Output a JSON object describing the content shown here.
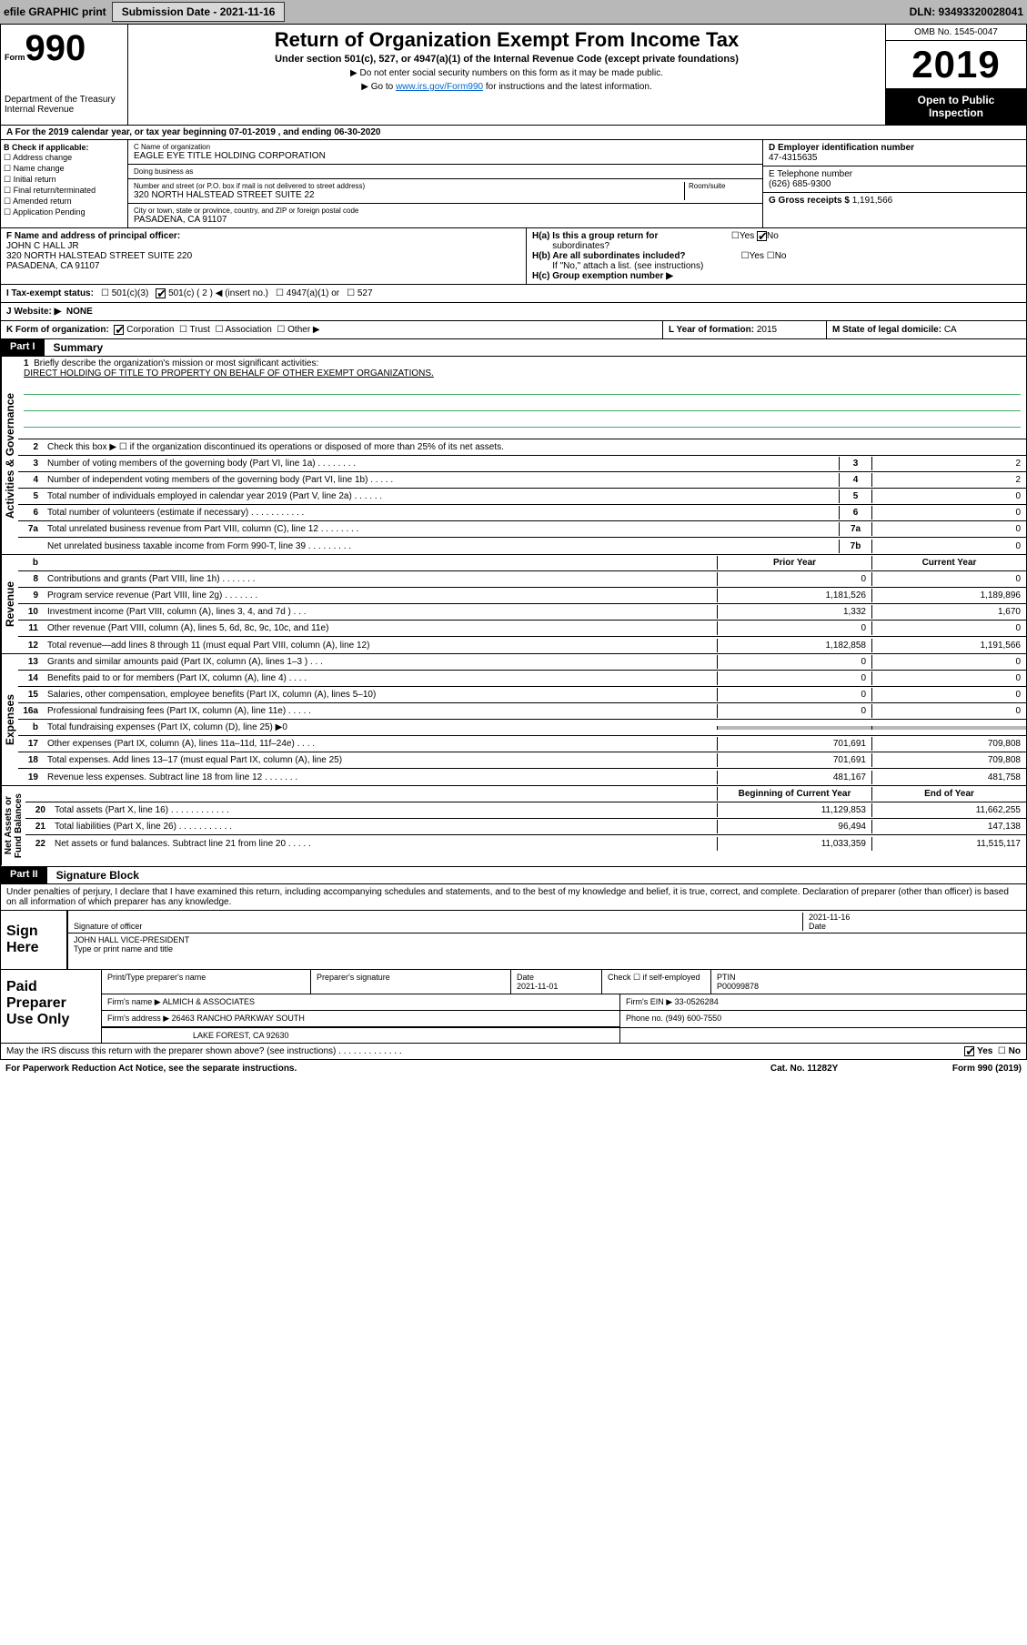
{
  "top_bar": {
    "efile": "efile GRAPHIC print",
    "submission_btn": "Submission Date - 2021-11-16",
    "dln": "DLN: 93493320028041"
  },
  "header": {
    "form_label": "Form",
    "form_num": "990",
    "dept": "Department of the Treasury\nInternal Revenue",
    "title": "Return of Organization Exempt From Income Tax",
    "subtitle": "Under section 501(c), 527, or 4947(a)(1) of the Internal Revenue Code (except private foundations)",
    "note1": "▶ Do not enter social security numbers on this form as it may be made public.",
    "note2_prefix": "▶ Go to ",
    "note2_link": "www.irs.gov/Form990",
    "note2_suffix": " for instructions and the latest information.",
    "omb": "OMB No. 1545-0047",
    "year": "2019",
    "inspection": "Open to Public Inspection"
  },
  "line_a": "A For the 2019 calendar year, or tax year beginning 07-01-2019    , and ending 06-30-2020",
  "section_b": {
    "check_label": "B Check if applicable:",
    "checks": [
      "Address change",
      "Name change",
      "Initial return",
      "Final return/terminated",
      "Amended return",
      "Application Pending"
    ],
    "org_name_lbl": "C Name of organization",
    "org_name": "EAGLE EYE TITLE HOLDING CORPORATION",
    "dba_lbl": "Doing business as",
    "dba": "",
    "addr_lbl": "Number and street (or P.O. box if mail is not delivered to street address)",
    "addr": "320 NORTH HALSTEAD STREET SUITE 22",
    "room_lbl": "Room/suite",
    "city_lbl": "City or town, state or province, country, and ZIP or foreign postal code",
    "city": "PASADENA, CA  91107",
    "ein_lbl": "D Employer identification number",
    "ein": "47-4315635",
    "tel_lbl": "E Telephone number",
    "tel": "(626) 685-9300",
    "gross_lbl": "G Gross receipts $",
    "gross": "1,191,566"
  },
  "principal": {
    "lbl": "F  Name and address of principal officer:",
    "name": "JOHN C HALL JR",
    "addr": "320 NORTH HALSTEAD STREET SUITE 220\nPASADENA, CA  91107",
    "ha_lbl": "H(a)  Is this a group return for",
    "ha_sub": "subordinates?",
    "ha_ans": "No",
    "hb_lbl": "H(b)  Are all subordinates included?",
    "hb_note": "If \"No,\" attach a list. (see instructions)",
    "hc_lbl": "H(c)  Group exemption number ▶"
  },
  "tax_status": {
    "lbl": "I  Tax-exempt status:",
    "opts": [
      "501(c)(3)",
      "501(c) ( 2 ) ◀ (insert no.)",
      "4947(a)(1) or",
      "527"
    ]
  },
  "website": {
    "lbl": "J  Website: ▶",
    "val": "NONE"
  },
  "kform": {
    "lbl": "K Form of organization:",
    "opts": [
      "Corporation",
      "Trust",
      "Association",
      "Other ▶"
    ],
    "l_lbl": "L Year of formation:",
    "l_val": "2015",
    "m_lbl": "M State of legal domicile:",
    "m_val": "CA"
  },
  "part1": {
    "tab": "Part I",
    "title": "Summary"
  },
  "summary": {
    "q1": "Briefly describe the organization's mission or most significant activities:",
    "mission": "DIRECT HOLDING OF TITLE TO PROPERTY ON BEHALF OF OTHER EXEMPT ORGANIZATIONS.",
    "q2": "Check this box ▶ ☐  if the organization discontinued its operations or disposed of more than 25% of its net assets.",
    "rows_simple": [
      {
        "n": "3",
        "d": "Number of voting members of the governing body (Part VI, line 1a)  .     .     .     .     .     .     .     .",
        "b": "3",
        "v": "2"
      },
      {
        "n": "4",
        "d": "Number of independent voting members of the governing body (Part VI, line 1b)   .     .     .     .     .",
        "b": "4",
        "v": "2"
      },
      {
        "n": "5",
        "d": "Total number of individuals employed in calendar year 2019 (Part V, line 2a)   .     .     .     .     .     .",
        "b": "5",
        "v": "0"
      },
      {
        "n": "6",
        "d": "Total number of volunteers (estimate if necessary)   .     .     .     .     .     .     .     .     .     .     .",
        "b": "6",
        "v": "0"
      },
      {
        "n": "7a",
        "d": "Total unrelated business revenue from Part VIII, column (C), line 12   .     .     .     .     .     .     .     .",
        "b": "7a",
        "v": "0"
      },
      {
        "n": "",
        "d": "Net unrelated business taxable income from Form 990-T, line 39   .     .     .     .     .     .     .     .     .",
        "b": "7b",
        "v": "0"
      }
    ],
    "two_col_hdr": {
      "prior": "Prior Year",
      "current": "Current Year"
    },
    "revenue_rows": [
      {
        "n": "8",
        "d": "Contributions and grants (Part VIII, line 1h)   .     .     .     .     .     .     .",
        "p": "0",
        "c": "0"
      },
      {
        "n": "9",
        "d": "Program service revenue (Part VIII, line 2g)    .     .     .     .     .     .     .",
        "p": "1,181,526",
        "c": "1,189,896"
      },
      {
        "n": "10",
        "d": "Investment income (Part VIII, column (A), lines 3, 4, and 7d )    .     .     .",
        "p": "1,332",
        "c": "1,670"
      },
      {
        "n": "11",
        "d": "Other revenue (Part VIII, column (A), lines 5, 6d, 8c, 9c, 10c, and 11e)",
        "p": "0",
        "c": "0"
      },
      {
        "n": "12",
        "d": "Total revenue—add lines 8 through 11 (must equal Part VIII, column (A), line 12)",
        "p": "1,182,858",
        "c": "1,191,566"
      }
    ],
    "expense_rows": [
      {
        "n": "13",
        "d": "Grants and similar amounts paid (Part IX, column (A), lines 1–3 )   .     .     .",
        "p": "0",
        "c": "0"
      },
      {
        "n": "14",
        "d": "Benefits paid to or for members (Part IX, column (A), line 4)    .     .     .     .",
        "p": "0",
        "c": "0"
      },
      {
        "n": "15",
        "d": "Salaries, other compensation, employee benefits (Part IX, column (A), lines 5–10)",
        "p": "0",
        "c": "0"
      },
      {
        "n": "16a",
        "d": "Professional fundraising fees (Part IX, column (A), line 11e)   .     .     .     .     .",
        "p": "0",
        "c": "0"
      },
      {
        "n": "b",
        "d": "Total fundraising expenses (Part IX, column (D), line 25) ▶0",
        "p": "",
        "c": "",
        "shaded": true
      },
      {
        "n": "17",
        "d": "Other expenses (Part IX, column (A), lines 11a–11d, 11f–24e)   .     .     .     .",
        "p": "701,691",
        "c": "709,808"
      },
      {
        "n": "18",
        "d": "Total expenses. Add lines 13–17 (must equal Part IX, column (A), line 25)",
        "p": "701,691",
        "c": "709,808"
      },
      {
        "n": "19",
        "d": "Revenue less expenses. Subtract line 18 from line 12   .     .     .     .     .     .     .",
        "p": "481,167",
        "c": "481,758"
      }
    ],
    "net_hdr": {
      "prior": "Beginning of Current Year",
      "current": "End of Year"
    },
    "net_rows": [
      {
        "n": "20",
        "d": "Total assets (Part X, line 16)    .     .     .     .     .     .     .     .     .     .     .     .",
        "p": "11,129,853",
        "c": "11,662,255"
      },
      {
        "n": "21",
        "d": "Total liabilities (Part X, line 26)    .     .     .     .     .     .     .     .     .     .     .",
        "p": "96,494",
        "c": "147,138"
      },
      {
        "n": "22",
        "d": "Net assets or fund balances. Subtract line 21 from line 20    .     .     .     .     .",
        "p": "11,033,359",
        "c": "11,515,117"
      }
    ]
  },
  "vtabs": {
    "gov": "Activities & Governance",
    "rev": "Revenue",
    "exp": "Expenses",
    "net": "Net Assets or\nFund Balances"
  },
  "part2": {
    "tab": "Part II",
    "title": "Signature Block"
  },
  "perjury": "Under penalties of perjury, I declare that I have examined this return, including accompanying schedules and statements, and to the best of my knowledge and belief, it is true, correct, and complete. Declaration of preparer (other than officer) is based on all information of which preparer has any knowledge.",
  "sign": {
    "label": "Sign Here",
    "sig_lbl": "Signature of officer",
    "date_lbl": "Date",
    "date": "2021-11-16",
    "name": "JOHN HALL VICE-PRESIDENT",
    "name_lbl": "Type or print name and title"
  },
  "preparer": {
    "label": "Paid Preparer Use Only",
    "name_lbl": "Print/Type preparer's name",
    "sig_lbl": "Preparer's signature",
    "date_lbl": "Date",
    "date": "2021-11-01",
    "self_lbl": "Check ☐  if self-employed",
    "ptin_lbl": "PTIN",
    "ptin": "P00099878",
    "firm_name_lbl": "Firm's name    ▶",
    "firm_name": "ALMICH & ASSOCIATES",
    "firm_ein_lbl": "Firm's EIN ▶",
    "firm_ein": "33-0526284",
    "firm_addr_lbl": "Firm's address ▶",
    "firm_addr": "26463 RANCHO PARKWAY SOUTH",
    "firm_city": "LAKE FOREST, CA  92630",
    "phone_lbl": "Phone no.",
    "phone": "(949) 600-7550"
  },
  "discuss": {
    "q": "May the IRS discuss this return with the preparer shown above? (see instructions)   .     .     .     .     .     .     .     .     .     .     .     .     .",
    "yes": "Yes",
    "no": "No"
  },
  "bottom": {
    "paperwork": "For Paperwork Reduction Act Notice, see the separate instructions.",
    "cat": "Cat. No. 11282Y",
    "form": "Form 990 (2019)"
  }
}
